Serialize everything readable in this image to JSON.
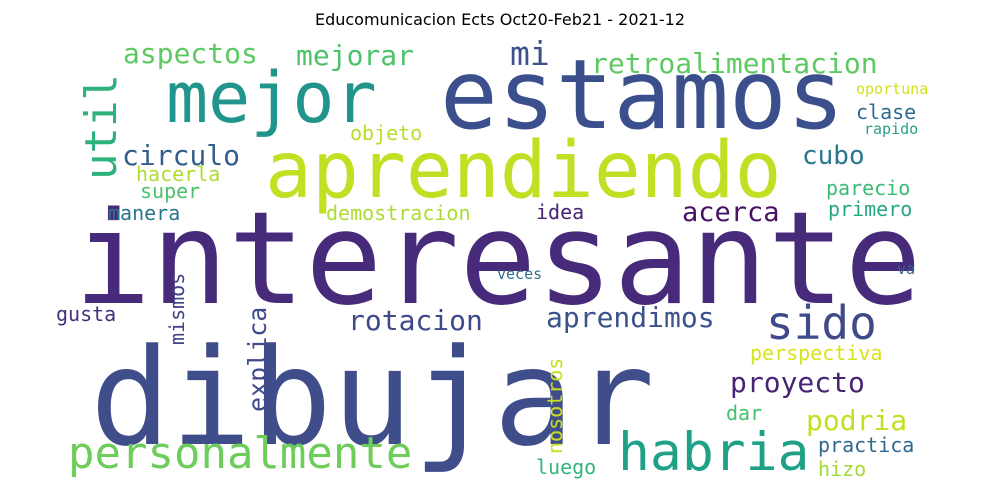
{
  "title": "Educomunicacion Ects Oct20-Feb21 - 2021-12",
  "words": [
    {
      "text": "interesante",
      "color": "#472b7a"
    },
    {
      "text": "dibujar",
      "color": "#3f4d8a"
    },
    {
      "text": "estamos",
      "color": "#3b4f8c"
    },
    {
      "text": "aprendiendo",
      "color": "#c2df23"
    },
    {
      "text": "mejor",
      "color": "#21958b"
    },
    {
      "text": "personalmente",
      "color": "#6ccd5a"
    },
    {
      "text": "habria",
      "color": "#1fa187"
    },
    {
      "text": "sido",
      "color": "#3e4a89"
    },
    {
      "text": "retroalimentacion",
      "color": "#5ec962"
    },
    {
      "text": "aspectos",
      "color": "#5ec962"
    },
    {
      "text": "mejorar",
      "color": "#4cc26c"
    },
    {
      "text": "mi",
      "color": "#3b528b"
    },
    {
      "text": "util",
      "color": "#2db27d"
    },
    {
      "text": "circulo",
      "color": "#355e8d"
    },
    {
      "text": "cubo",
      "color": "#2a788e"
    },
    {
      "text": "objeto",
      "color": "#b8de29"
    },
    {
      "text": "hacerla",
      "color": "#addc30"
    },
    {
      "text": "super",
      "color": "#4ac16d"
    },
    {
      "text": "clase",
      "color": "#306a8e"
    },
    {
      "text": "oportuna",
      "color": "#d2e21b"
    },
    {
      "text": "rapido",
      "color": "#2c9f89"
    },
    {
      "text": "parecio",
      "color": "#3bbb75"
    },
    {
      "text": "primero",
      "color": "#26a784"
    },
    {
      "text": "manera",
      "color": "#2b758e"
    },
    {
      "text": "demostracion",
      "color": "#addc30"
    },
    {
      "text": "idea",
      "color": "#482374"
    },
    {
      "text": "acerca",
      "color": "#471164"
    },
    {
      "text": "rotacion",
      "color": "#3e4989"
    },
    {
      "text": "aprendimos",
      "color": "#3b528b"
    },
    {
      "text": "gusta",
      "color": "#46307e"
    },
    {
      "text": "mismos",
      "color": "#414487"
    },
    {
      "text": "explica",
      "color": "#3f4a8a"
    },
    {
      "text": "veces",
      "color": "#2d708e"
    },
    {
      "text": "va",
      "color": "#33638d"
    },
    {
      "text": "perspectiva",
      "color": "#d8e219"
    },
    {
      "text": "proyecto",
      "color": "#482475"
    },
    {
      "text": "nosotros",
      "color": "#c8e020"
    },
    {
      "text": "podria",
      "color": "#c2df23"
    },
    {
      "text": "dar",
      "color": "#46c06f"
    },
    {
      "text": "practica",
      "color": "#31688e"
    },
    {
      "text": "luego",
      "color": "#32b67a"
    },
    {
      "text": "hizo",
      "color": "#a2da37"
    }
  ]
}
